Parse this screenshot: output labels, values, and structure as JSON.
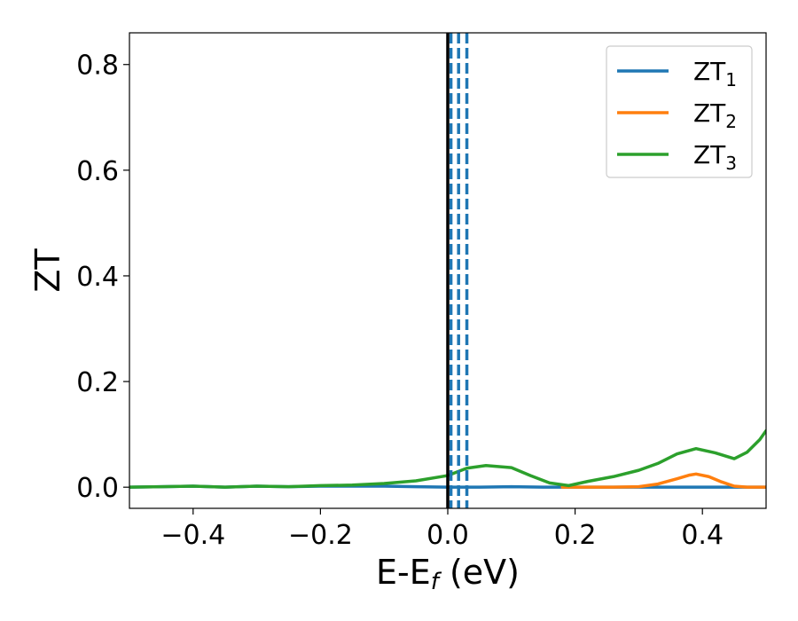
{
  "chart_data": {
    "type": "line",
    "xlabel": {
      "main": "E-E",
      "sub": "f",
      "suffix": " (eV)"
    },
    "ylabel": "ZT",
    "xlim": [
      -0.5,
      0.5
    ],
    "ylim": [
      -0.04,
      0.86
    ],
    "xticks": [
      -0.4,
      -0.2,
      0.0,
      0.2,
      0.4
    ],
    "xtick_labels": [
      "−0.4",
      "−0.2",
      "0.0",
      "0.2",
      "0.4"
    ],
    "yticks": [
      0.0,
      0.2,
      0.4,
      0.6,
      0.8
    ],
    "ytick_labels": [
      "0.0",
      "0.2",
      "0.4",
      "0.6",
      "0.8"
    ],
    "grid": false,
    "legend_position": "top-right",
    "fermi_line": {
      "x": 0.0,
      "color": "#000000"
    },
    "dashed_lines": {
      "x": [
        0.005,
        0.017,
        0.03
      ],
      "color": "#1f77b4"
    },
    "series": [
      {
        "name": "ZT",
        "subscript": "1",
        "color": "#1f77b4",
        "x": [
          -0.5,
          -0.45,
          -0.4,
          -0.35,
          -0.3,
          -0.25,
          -0.2,
          -0.15,
          -0.1,
          -0.05,
          0.0,
          0.05,
          0.1,
          0.15,
          0.2,
          0.25,
          0.3,
          0.35,
          0.4,
          0.45,
          0.5
        ],
        "y": [
          0.0,
          0.001,
          0.002,
          0.0,
          0.002,
          0.001,
          0.002,
          0.002,
          0.002,
          0.001,
          0.0,
          0.0,
          0.001,
          0.0,
          0.0,
          0.0,
          0.0,
          0.0,
          0.0,
          0.0,
          0.0
        ]
      },
      {
        "name": "ZT",
        "subscript": "2",
        "color": "#ff7f0e",
        "x": [
          0.18,
          0.22,
          0.26,
          0.3,
          0.33,
          0.36,
          0.38,
          0.39,
          0.41,
          0.43,
          0.45,
          0.47,
          0.5
        ],
        "y": [
          0.0,
          0.0,
          0.0,
          0.001,
          0.006,
          0.016,
          0.023,
          0.025,
          0.02,
          0.01,
          0.002,
          0.0,
          0.0
        ]
      },
      {
        "name": "ZT",
        "subscript": "3",
        "color": "#2ca02c",
        "x": [
          -0.5,
          -0.45,
          -0.4,
          -0.35,
          -0.3,
          -0.25,
          -0.2,
          -0.15,
          -0.1,
          -0.05,
          0.0,
          0.03,
          0.06,
          0.1,
          0.13,
          0.16,
          0.19,
          0.22,
          0.26,
          0.3,
          0.33,
          0.36,
          0.39,
          0.42,
          0.45,
          0.47,
          0.49,
          0.5
        ],
        "y": [
          0.0,
          0.001,
          0.002,
          0.0,
          0.002,
          0.001,
          0.003,
          0.004,
          0.007,
          0.012,
          0.022,
          0.036,
          0.041,
          0.037,
          0.022,
          0.008,
          0.003,
          0.011,
          0.02,
          0.032,
          0.045,
          0.063,
          0.073,
          0.065,
          0.054,
          0.066,
          0.09,
          0.107
        ]
      }
    ]
  }
}
